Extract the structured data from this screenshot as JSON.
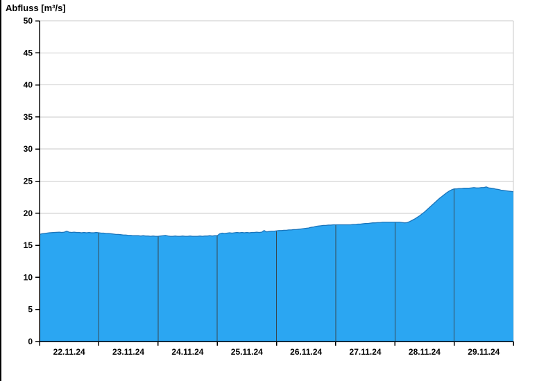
{
  "window": {
    "background": "#ffffff"
  },
  "chart_data": {
    "type": "area",
    "title": "Abfluss [m³/s]",
    "xlabel": "",
    "ylabel": "Abfluss [m³/s]",
    "ylim": [
      0,
      50
    ],
    "y_ticks": [
      0,
      5,
      10,
      15,
      20,
      25,
      30,
      35,
      40,
      45,
      50
    ],
    "x_range_hours": [
      0,
      192
    ],
    "hours_per_day": 24,
    "x_day_labels": [
      "22.11.24",
      "23.11.24",
      "24.11.24",
      "25.11.24",
      "26.11.24",
      "27.11.24",
      "28.11.24",
      "29.11.24"
    ],
    "grid": {
      "horizontal": true,
      "vertical_day_separators": true,
      "legend": "none"
    },
    "colors": {
      "area_fill": "#2ba6f2",
      "area_line": "#1b75bb",
      "day_separator": "#37474f",
      "gridline": "#c9c9c9",
      "axis": "#000000",
      "frame_light": "#c9c9c9",
      "text": "#000000"
    },
    "series": [
      {
        "name": "Abfluss",
        "unit": "m³/s",
        "points": [
          [
            0,
            16.7
          ],
          [
            1,
            16.8
          ],
          [
            2,
            16.85
          ],
          [
            3,
            16.9
          ],
          [
            4,
            16.95
          ],
          [
            6,
            17.0
          ],
          [
            8,
            17.05
          ],
          [
            9,
            17.0
          ],
          [
            10,
            17.05
          ],
          [
            11,
            17.2
          ],
          [
            12,
            17.05
          ],
          [
            13,
            17.0
          ],
          [
            14,
            17.05
          ],
          [
            15,
            17.0
          ],
          [
            16,
            17.0
          ],
          [
            17,
            16.95
          ],
          [
            18,
            17.0
          ],
          [
            19,
            16.95
          ],
          [
            20,
            17.0
          ],
          [
            21,
            16.95
          ],
          [
            22,
            16.95
          ],
          [
            23,
            17.0
          ],
          [
            24,
            16.95
          ],
          [
            25,
            16.9
          ],
          [
            26,
            16.9
          ],
          [
            27,
            16.85
          ],
          [
            28,
            16.85
          ],
          [
            29,
            16.8
          ],
          [
            30,
            16.75
          ],
          [
            31,
            16.7
          ],
          [
            32,
            16.7
          ],
          [
            33,
            16.65
          ],
          [
            34,
            16.6
          ],
          [
            35,
            16.6
          ],
          [
            36,
            16.55
          ],
          [
            37,
            16.55
          ],
          [
            38,
            16.5
          ],
          [
            39,
            16.5
          ],
          [
            40,
            16.5
          ],
          [
            41,
            16.45
          ],
          [
            42,
            16.5
          ],
          [
            43,
            16.45
          ],
          [
            44,
            16.45
          ],
          [
            45,
            16.4
          ],
          [
            46,
            16.45
          ],
          [
            47,
            16.4
          ],
          [
            48,
            16.4
          ],
          [
            49,
            16.45
          ],
          [
            50,
            16.5
          ],
          [
            51,
            16.55
          ],
          [
            52,
            16.45
          ],
          [
            53,
            16.4
          ],
          [
            54,
            16.4
          ],
          [
            55,
            16.45
          ],
          [
            56,
            16.4
          ],
          [
            57,
            16.4
          ],
          [
            58,
            16.45
          ],
          [
            59,
            16.4
          ],
          [
            60,
            16.4
          ],
          [
            61,
            16.45
          ],
          [
            62,
            16.4
          ],
          [
            63,
            16.4
          ],
          [
            64,
            16.4
          ],
          [
            65,
            16.45
          ],
          [
            66,
            16.4
          ],
          [
            67,
            16.45
          ],
          [
            68,
            16.45
          ],
          [
            69,
            16.5
          ],
          [
            70,
            16.45
          ],
          [
            71,
            16.5
          ],
          [
            72,
            16.5
          ],
          [
            73,
            16.8
          ],
          [
            74,
            16.9
          ],
          [
            75,
            16.85
          ],
          [
            76,
            16.9
          ],
          [
            77,
            16.95
          ],
          [
            78,
            16.9
          ],
          [
            79,
            16.95
          ],
          [
            80,
            17.0
          ],
          [
            81,
            16.95
          ],
          [
            82,
            17.0
          ],
          [
            83,
            16.95
          ],
          [
            84,
            17.0
          ],
          [
            85,
            16.95
          ],
          [
            86,
            17.0
          ],
          [
            87,
            17.0
          ],
          [
            88,
            17.05
          ],
          [
            89,
            17.0
          ],
          [
            90,
            17.05
          ],
          [
            91,
            17.3
          ],
          [
            92,
            17.1
          ],
          [
            93,
            17.15
          ],
          [
            94,
            17.2
          ],
          [
            95,
            17.2
          ],
          [
            96,
            17.25
          ],
          [
            97,
            17.3
          ],
          [
            98,
            17.3
          ],
          [
            99,
            17.35
          ],
          [
            100,
            17.35
          ],
          [
            101,
            17.4
          ],
          [
            102,
            17.4
          ],
          [
            103,
            17.45
          ],
          [
            104,
            17.45
          ],
          [
            105,
            17.5
          ],
          [
            106,
            17.55
          ],
          [
            107,
            17.6
          ],
          [
            108,
            17.65
          ],
          [
            109,
            17.7
          ],
          [
            110,
            17.8
          ],
          [
            111,
            17.85
          ],
          [
            112,
            17.95
          ],
          [
            113,
            18.0
          ],
          [
            114,
            18.05
          ],
          [
            115,
            18.1
          ],
          [
            116,
            18.1
          ],
          [
            117,
            18.15
          ],
          [
            118,
            18.15
          ],
          [
            119,
            18.2
          ],
          [
            120,
            18.2
          ],
          [
            121,
            18.2
          ],
          [
            122,
            18.2
          ],
          [
            123,
            18.2
          ],
          [
            124,
            18.2
          ],
          [
            125,
            18.2
          ],
          [
            126,
            18.2
          ],
          [
            127,
            18.25
          ],
          [
            128,
            18.25
          ],
          [
            129,
            18.3
          ],
          [
            130,
            18.3
          ],
          [
            131,
            18.35
          ],
          [
            132,
            18.4
          ],
          [
            133,
            18.4
          ],
          [
            134,
            18.45
          ],
          [
            135,
            18.5
          ],
          [
            136,
            18.5
          ],
          [
            137,
            18.55
          ],
          [
            138,
            18.55
          ],
          [
            139,
            18.6
          ],
          [
            140,
            18.6
          ],
          [
            141,
            18.6
          ],
          [
            142,
            18.6
          ],
          [
            143,
            18.6
          ],
          [
            144,
            18.6
          ],
          [
            145,
            18.6
          ],
          [
            146,
            18.6
          ],
          [
            147,
            18.55
          ],
          [
            148,
            18.5
          ],
          [
            149,
            18.55
          ],
          [
            150,
            18.7
          ],
          [
            151,
            18.9
          ],
          [
            152,
            19.1
          ],
          [
            153,
            19.35
          ],
          [
            154,
            19.6
          ],
          [
            155,
            19.9
          ],
          [
            156,
            20.2
          ],
          [
            157,
            20.55
          ],
          [
            158,
            20.9
          ],
          [
            159,
            21.25
          ],
          [
            160,
            21.6
          ],
          [
            161,
            21.95
          ],
          [
            162,
            22.3
          ],
          [
            163,
            22.6
          ],
          [
            164,
            22.9
          ],
          [
            165,
            23.2
          ],
          [
            166,
            23.45
          ],
          [
            167,
            23.65
          ],
          [
            168,
            23.8
          ],
          [
            169,
            23.8
          ],
          [
            170,
            23.85
          ],
          [
            171,
            23.85
          ],
          [
            172,
            23.9
          ],
          [
            173,
            23.9
          ],
          [
            174,
            23.9
          ],
          [
            175,
            23.95
          ],
          [
            176,
            24.0
          ],
          [
            177,
            23.95
          ],
          [
            178,
            23.95
          ],
          [
            179,
            24.0
          ],
          [
            180,
            24.0
          ],
          [
            181,
            24.1
          ],
          [
            182,
            23.95
          ],
          [
            183,
            23.9
          ],
          [
            184,
            23.85
          ],
          [
            185,
            23.75
          ],
          [
            186,
            23.7
          ],
          [
            187,
            23.6
          ],
          [
            188,
            23.55
          ],
          [
            189,
            23.5
          ],
          [
            190,
            23.45
          ],
          [
            191,
            23.4
          ],
          [
            192,
            23.35
          ]
        ]
      }
    ]
  }
}
